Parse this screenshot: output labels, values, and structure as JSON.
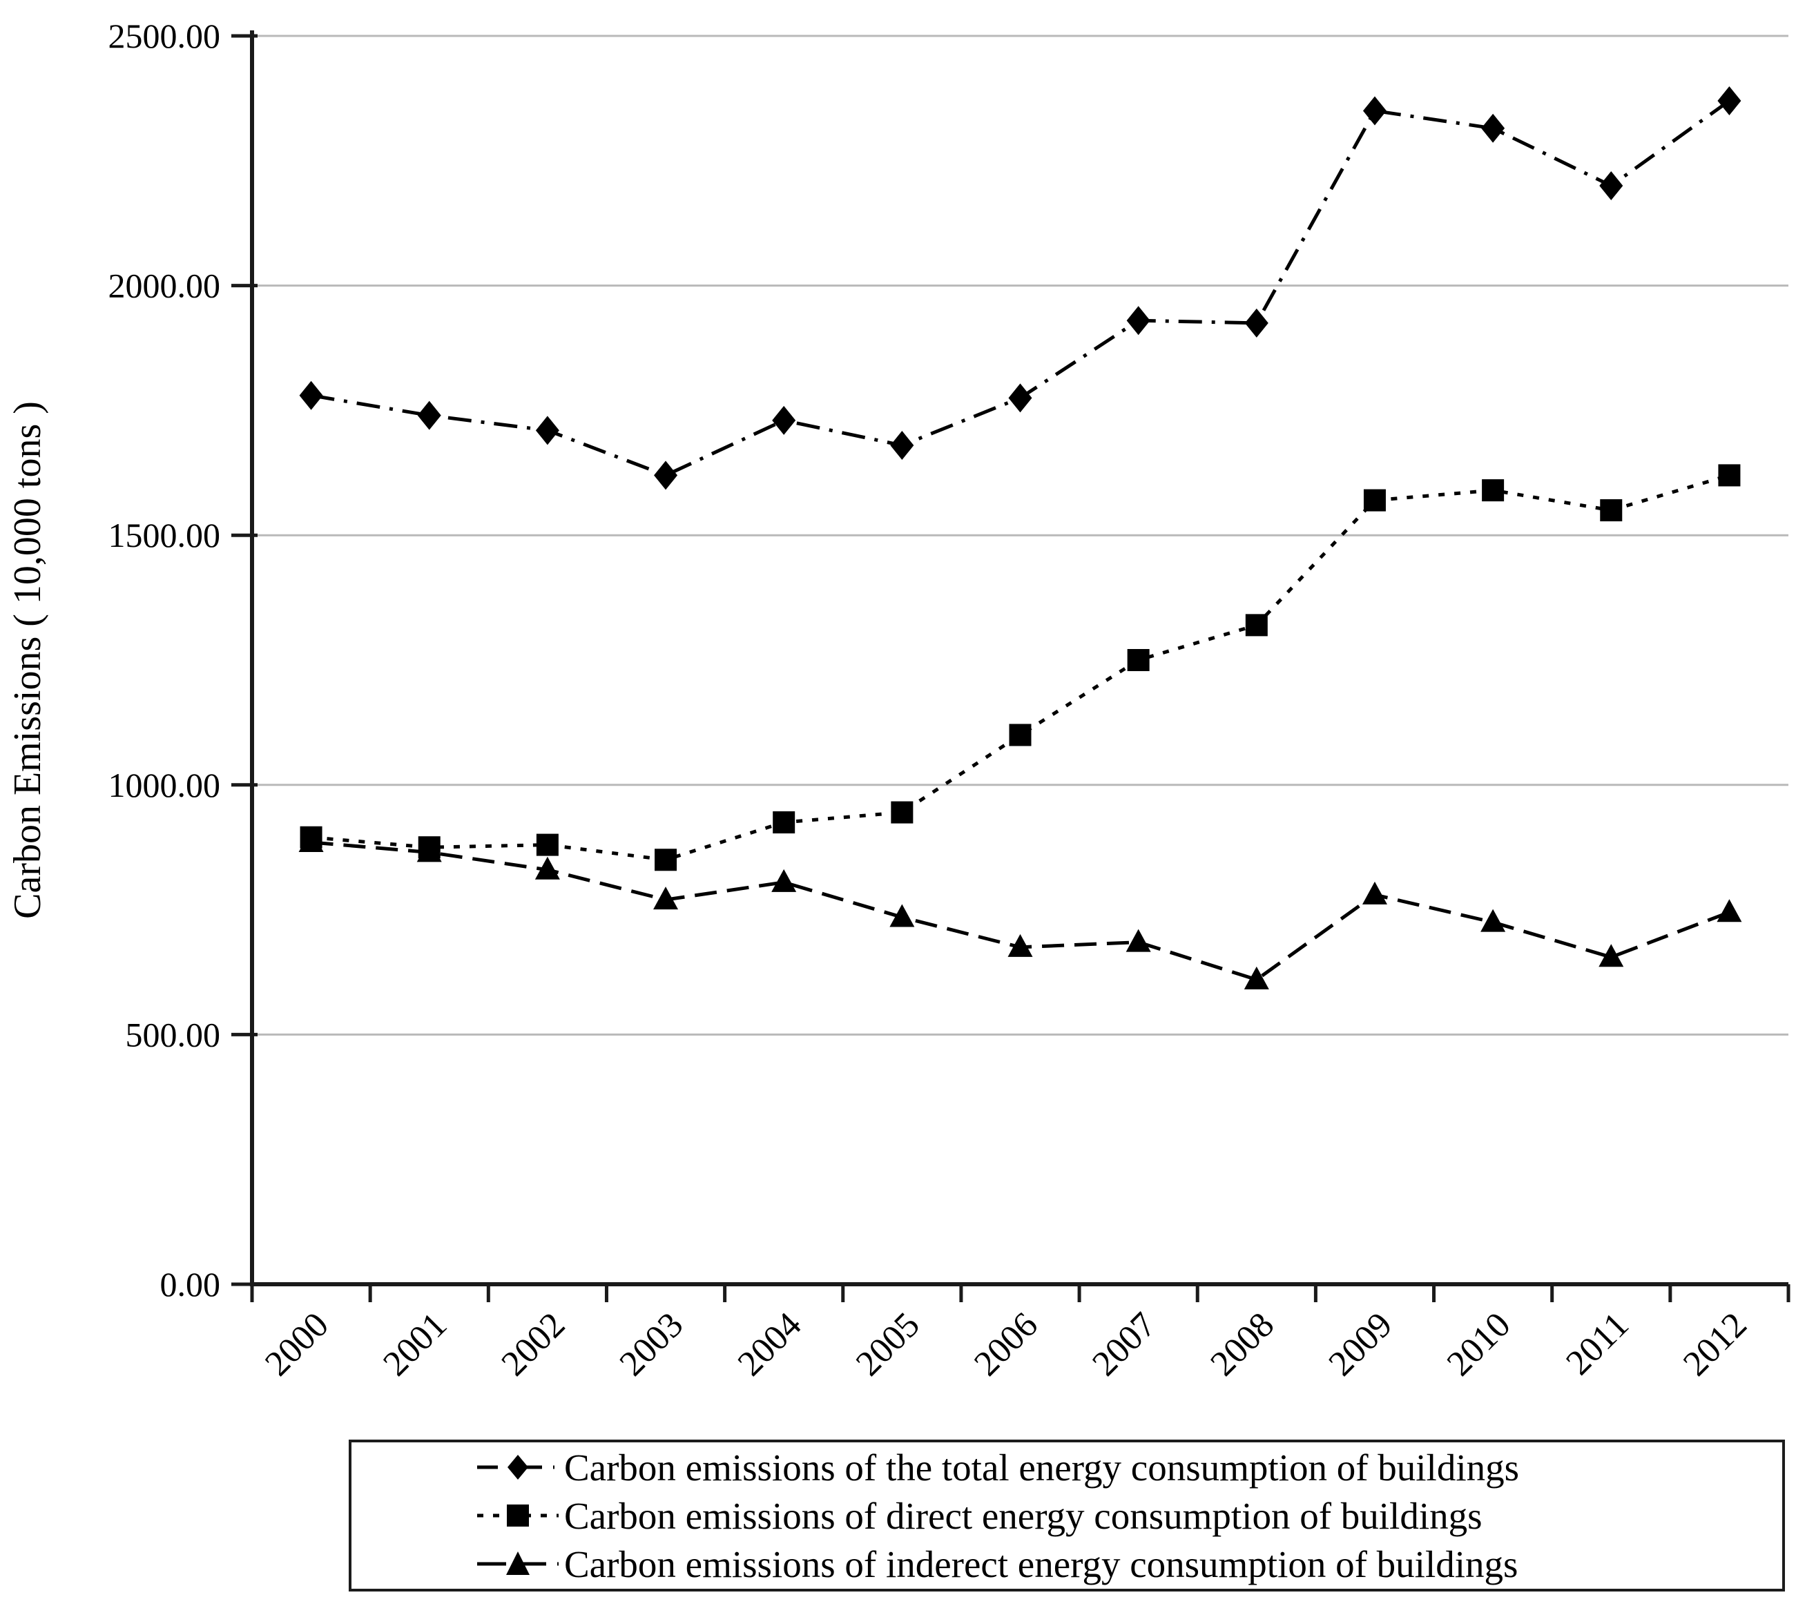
{
  "page": {
    "background": "#ffffff"
  },
  "colors": {
    "axis": "#1a1a1a",
    "gridline": "#b9b9b9",
    "series": "#000000",
    "text": "#000000",
    "legend_border": "#1c1c1c"
  },
  "chart_data": {
    "type": "line",
    "title": "",
    "xlabel": "",
    "ylabel": "Carbon Emissions ( 10,000 tons )",
    "ylim": [
      0,
      2500
    ],
    "ytick_step": 500,
    "ytick_labels": [
      "0.00",
      "500.00",
      "1000.00",
      "1500.00",
      "2000.00",
      "2500.00"
    ],
    "categories": [
      "2000",
      "2001",
      "2002",
      "2003",
      "2004",
      "2005",
      "2006",
      "2007",
      "2008",
      "2009",
      "2010",
      "2011",
      "2012"
    ],
    "grid": "horizontal",
    "legend_position": "bottom",
    "series": [
      {
        "name": "Carbon emissions of the total energy consumption of buildings",
        "marker": "diamond",
        "line_style": "dash-dot",
        "color": "#000000",
        "values": [
          1780,
          1740,
          1710,
          1620,
          1730,
          1680,
          1775,
          1930,
          1925,
          2350,
          2315,
          2200,
          2370
        ]
      },
      {
        "name": "Carbon emissions of direct energy consumption of buildings",
        "marker": "square",
        "line_style": "dotted",
        "color": "#000000",
        "values": [
          895,
          875,
          880,
          850,
          925,
          945,
          1100,
          1250,
          1320,
          1570,
          1590,
          1550,
          1620
        ]
      },
      {
        "name": "Carbon emissions of inderect energy consumption of buildings",
        "marker": "triangle",
        "line_style": "dashed",
        "color": "#000000",
        "values": [
          885,
          865,
          830,
          770,
          805,
          735,
          675,
          685,
          610,
          780,
          725,
          655,
          745
        ]
      }
    ]
  }
}
